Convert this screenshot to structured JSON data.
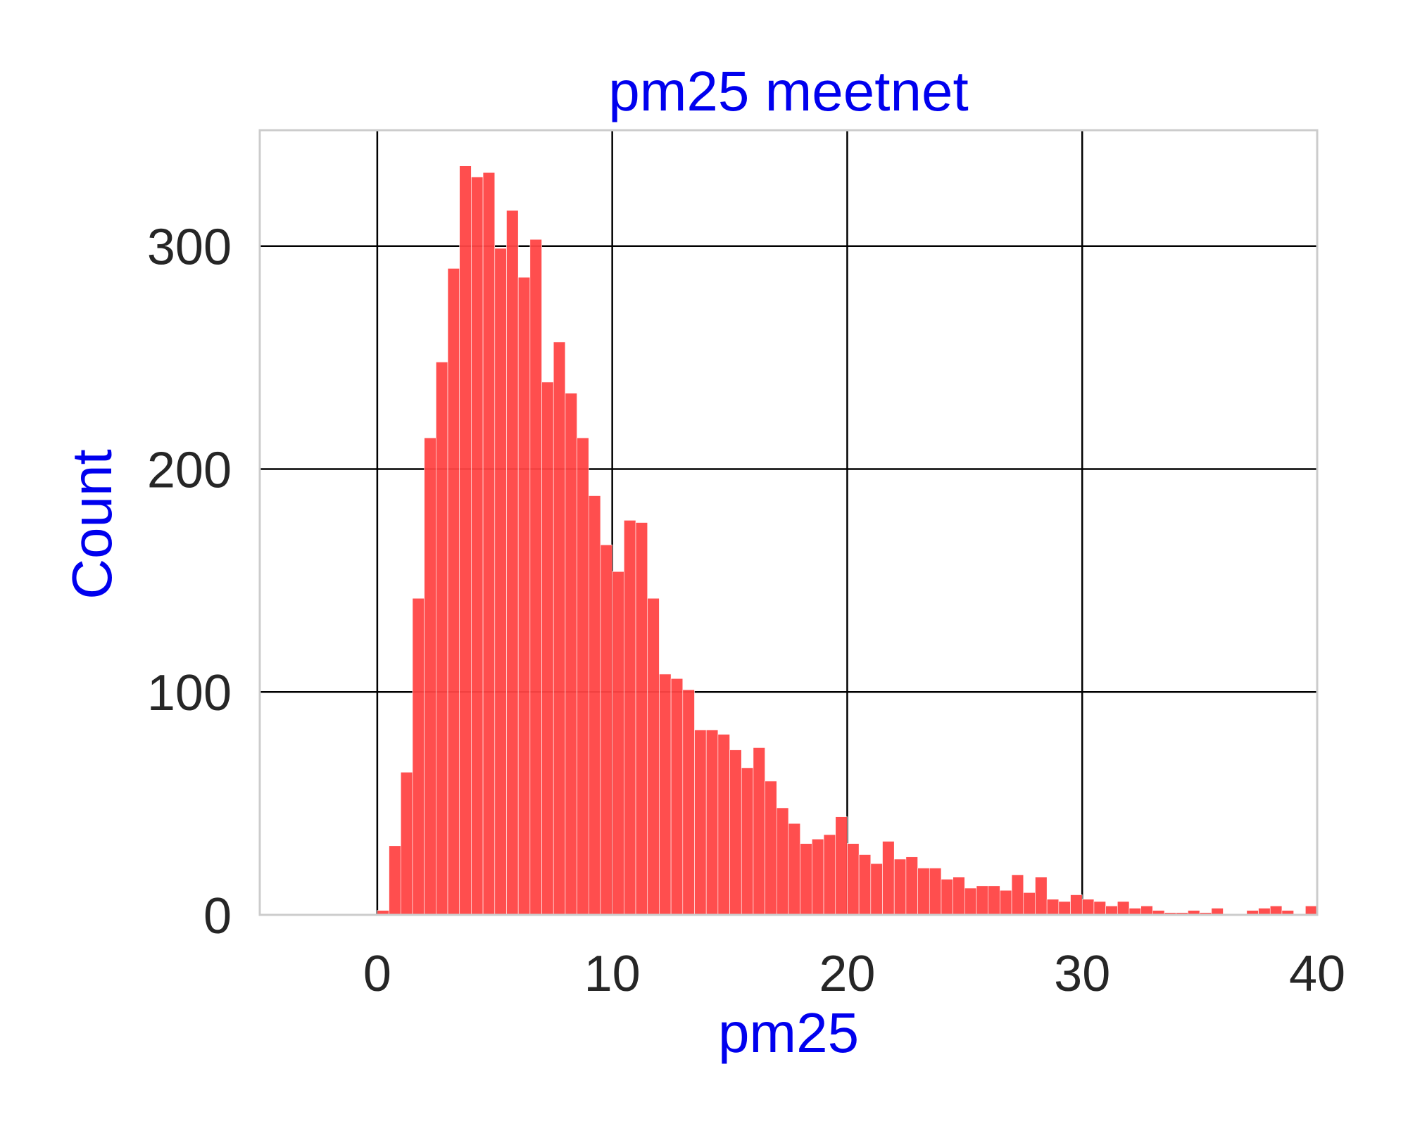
{
  "chart_data": {
    "type": "bar",
    "title": "pm25 meetnet",
    "xlabel": "pm25",
    "ylabel": "Count",
    "xlim": [
      -5,
      40
    ],
    "ylim": [
      0,
      352
    ],
    "xticks": [
      0,
      10,
      20,
      30,
      40
    ],
    "yticks": [
      0,
      100,
      200,
      300
    ],
    "x_tick_labels": [
      "0",
      "10",
      "20",
      "30",
      "40"
    ],
    "y_tick_labels": [
      "0",
      "100",
      "200",
      "300"
    ],
    "grid": true,
    "legend": "none",
    "colors": {
      "bar": "#ff4444",
      "bar_edge": "#ffffff",
      "title": "#0000ee",
      "axis_label": "#0000ee",
      "tick_label": "#262626",
      "grid": "#000000",
      "frame": "#cccccc"
    },
    "bin_width": 0.5,
    "bin_edges_start": 0,
    "values": [
      2,
      31,
      64,
      142,
      214,
      248,
      290,
      336,
      331,
      333,
      299,
      316,
      286,
      303,
      239,
      257,
      234,
      214,
      188,
      166,
      154,
      177,
      176,
      142,
      108,
      106,
      101,
      83,
      83,
      81,
      74,
      66,
      75,
      60,
      48,
      41,
      32,
      34,
      36,
      44,
      32,
      27,
      23,
      33,
      25,
      26,
      21,
      21,
      16,
      17,
      12,
      13,
      13,
      11,
      18,
      10,
      17,
      7,
      6,
      9,
      7,
      6,
      4,
      6,
      3,
      4,
      2,
      1,
      1,
      2,
      1,
      3,
      0,
      0,
      2,
      3,
      4,
      2,
      0,
      4,
      1
    ]
  }
}
